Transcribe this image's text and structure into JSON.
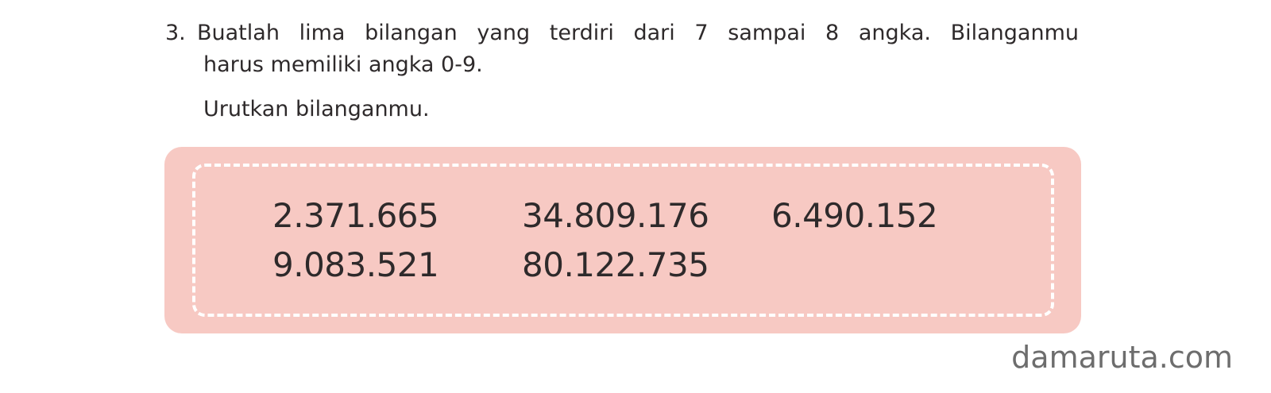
{
  "question": {
    "number": "3.",
    "line1": "Buatlah lima bilangan yang terdiri dari 7 sampai 8 angka.  Bilanganmu",
    "line2": "harus memiliki angka 0-9."
  },
  "instruction": "Urutkan bilanganmu.",
  "answer_box": {
    "background_color": "#f7c9c3",
    "numbers": [
      "2.371.665",
      "34.809.176",
      "6.490.152",
      "9.083.521",
      "80.122.735"
    ]
  },
  "watermark": "damaruta.com"
}
